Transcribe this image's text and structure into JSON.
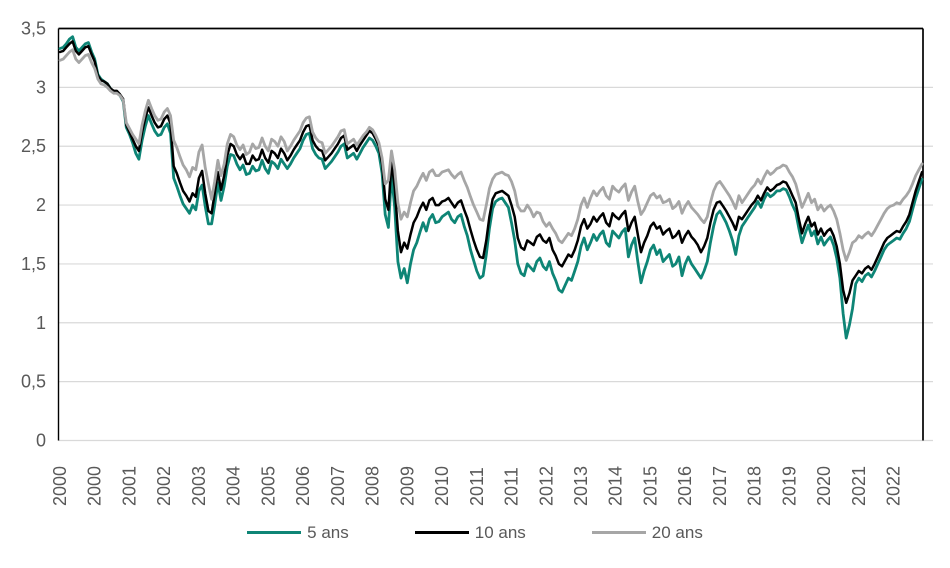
{
  "chart_data": {
    "type": "line",
    "title": "",
    "xlabel": "",
    "ylabel": "",
    "ylim": [
      0,
      3.5
    ],
    "grid": "horizontal",
    "legend_position": "bottom",
    "x_unit": "monthly categories",
    "points_per_series": 274,
    "y_tick_values": [
      0,
      0.5,
      1,
      1.5,
      2,
      2.5,
      3,
      3.5
    ],
    "y_tick_labels": [
      "0",
      "0,5",
      "1",
      "1,5",
      "2",
      "2,5",
      "3",
      "3,5"
    ],
    "x_tick_indices": [
      0,
      11,
      22,
      33,
      44,
      55,
      66,
      77,
      88,
      99,
      110,
      121,
      132,
      143,
      154,
      165,
      176,
      187,
      198,
      209,
      220,
      231,
      242,
      253,
      264
    ],
    "x_tick_labels": [
      "2000",
      "2000",
      "2001",
      "2002",
      "2003",
      "2004",
      "2005",
      "2006",
      "2007",
      "2008",
      "2009",
      "2010",
      "2011",
      "2011",
      "2012",
      "2013",
      "2014",
      "2015",
      "2016",
      "2017",
      "2018",
      "2019",
      "2020",
      "2021",
      "2022"
    ],
    "axis_text_color": "#595959",
    "gridline_color": "#d9d9d9",
    "border_color": "#000000",
    "series": [
      {
        "name": "5 ans",
        "color": "#0e8576",
        "values": [
          3.33,
          3.34,
          3.37,
          3.41,
          3.43,
          3.34,
          3.31,
          3.34,
          3.37,
          3.38,
          3.3,
          3.24,
          3.11,
          3.07,
          3.05,
          3.03,
          2.99,
          2.96,
          2.96,
          2.93,
          2.88,
          2.66,
          2.6,
          2.53,
          2.44,
          2.39,
          2.55,
          2.67,
          2.76,
          2.69,
          2.63,
          2.59,
          2.6,
          2.66,
          2.69,
          2.61,
          2.23,
          2.16,
          2.08,
          2.01,
          1.97,
          1.93,
          2.0,
          1.96,
          2.12,
          2.17,
          1.99,
          1.84,
          1.84,
          2.0,
          2.19,
          2.04,
          2.16,
          2.33,
          2.43,
          2.42,
          2.35,
          2.3,
          2.34,
          2.26,
          2.27,
          2.33,
          2.29,
          2.3,
          2.38,
          2.31,
          2.27,
          2.37,
          2.35,
          2.31,
          2.39,
          2.35,
          2.31,
          2.35,
          2.4,
          2.44,
          2.48,
          2.55,
          2.6,
          2.61,
          2.48,
          2.43,
          2.4,
          2.39,
          2.31,
          2.34,
          2.37,
          2.41,
          2.45,
          2.5,
          2.52,
          2.4,
          2.42,
          2.44,
          2.39,
          2.44,
          2.49,
          2.53,
          2.57,
          2.55,
          2.5,
          2.44,
          2.27,
          1.92,
          1.81,
          2.26,
          1.98,
          1.52,
          1.38,
          1.46,
          1.34,
          1.5,
          1.62,
          1.68,
          1.77,
          1.85,
          1.78,
          1.88,
          1.92,
          1.85,
          1.86,
          1.9,
          1.92,
          1.94,
          1.88,
          1.85,
          1.9,
          1.92,
          1.82,
          1.74,
          1.62,
          1.53,
          1.44,
          1.38,
          1.4,
          1.58,
          1.8,
          1.97,
          2.03,
          2.05,
          2.06,
          2.02,
          1.98,
          1.85,
          1.7,
          1.5,
          1.42,
          1.4,
          1.5,
          1.47,
          1.44,
          1.52,
          1.55,
          1.48,
          1.45,
          1.52,
          1.42,
          1.36,
          1.28,
          1.26,
          1.32,
          1.38,
          1.36,
          1.44,
          1.52,
          1.65,
          1.72,
          1.62,
          1.68,
          1.75,
          1.7,
          1.75,
          1.78,
          1.68,
          1.65,
          1.78,
          1.75,
          1.72,
          1.77,
          1.8,
          1.56,
          1.66,
          1.72,
          1.52,
          1.34,
          1.44,
          1.52,
          1.62,
          1.66,
          1.58,
          1.62,
          1.52,
          1.55,
          1.58,
          1.48,
          1.5,
          1.56,
          1.4,
          1.5,
          1.56,
          1.5,
          1.46,
          1.42,
          1.38,
          1.44,
          1.52,
          1.68,
          1.82,
          1.92,
          1.95,
          1.9,
          1.85,
          1.78,
          1.7,
          1.58,
          1.74,
          1.82,
          1.86,
          1.9,
          1.94,
          1.98,
          2.03,
          1.98,
          2.05,
          2.1,
          2.07,
          2.09,
          2.12,
          2.12,
          2.14,
          2.13,
          2.07,
          2.0,
          1.94,
          1.8,
          1.68,
          1.76,
          1.83,
          1.74,
          1.78,
          1.67,
          1.73,
          1.66,
          1.7,
          1.73,
          1.66,
          1.55,
          1.38,
          1.08,
          0.87,
          0.98,
          1.12,
          1.33,
          1.38,
          1.35,
          1.4,
          1.42,
          1.39,
          1.44,
          1.5,
          1.56,
          1.62,
          1.66,
          1.68,
          1.7,
          1.72,
          1.71,
          1.76,
          1.8,
          1.86,
          1.96,
          2.06,
          2.14,
          2.22
        ]
      },
      {
        "name": "10 ans",
        "color": "#000000",
        "values": [
          3.3,
          3.31,
          3.34,
          3.37,
          3.39,
          3.31,
          3.28,
          3.31,
          3.34,
          3.35,
          3.28,
          3.22,
          3.1,
          3.06,
          3.05,
          3.03,
          2.99,
          2.97,
          2.97,
          2.94,
          2.9,
          2.68,
          2.62,
          2.56,
          2.5,
          2.46,
          2.62,
          2.74,
          2.83,
          2.76,
          2.7,
          2.66,
          2.67,
          2.73,
          2.76,
          2.69,
          2.33,
          2.27,
          2.19,
          2.12,
          2.08,
          2.03,
          2.1,
          2.07,
          2.23,
          2.29,
          2.1,
          1.95,
          1.93,
          2.1,
          2.28,
          2.13,
          2.25,
          2.42,
          2.52,
          2.5,
          2.43,
          2.39,
          2.43,
          2.35,
          2.35,
          2.42,
          2.38,
          2.39,
          2.47,
          2.4,
          2.36,
          2.46,
          2.44,
          2.4,
          2.48,
          2.44,
          2.38,
          2.42,
          2.47,
          2.51,
          2.55,
          2.62,
          2.67,
          2.68,
          2.55,
          2.5,
          2.47,
          2.46,
          2.38,
          2.41,
          2.44,
          2.48,
          2.52,
          2.57,
          2.59,
          2.47,
          2.49,
          2.51,
          2.46,
          2.51,
          2.55,
          2.59,
          2.63,
          2.61,
          2.56,
          2.5,
          2.35,
          2.05,
          1.96,
          2.37,
          2.15,
          1.78,
          1.6,
          1.68,
          1.63,
          1.75,
          1.85,
          1.9,
          1.97,
          2.02,
          1.96,
          2.04,
          2.06,
          2.0,
          2.0,
          2.03,
          2.04,
          2.06,
          2.02,
          1.98,
          2.02,
          2.04,
          1.96,
          1.89,
          1.79,
          1.7,
          1.62,
          1.56,
          1.55,
          1.7,
          1.9,
          2.05,
          2.1,
          2.11,
          2.12,
          2.1,
          2.08,
          2.0,
          1.9,
          1.72,
          1.64,
          1.62,
          1.7,
          1.68,
          1.66,
          1.73,
          1.75,
          1.7,
          1.68,
          1.72,
          1.62,
          1.57,
          1.5,
          1.48,
          1.53,
          1.58,
          1.56,
          1.62,
          1.7,
          1.82,
          1.88,
          1.8,
          1.84,
          1.9,
          1.86,
          1.9,
          1.93,
          1.85,
          1.82,
          1.93,
          1.9,
          1.88,
          1.92,
          1.95,
          1.78,
          1.85,
          1.9,
          1.75,
          1.6,
          1.68,
          1.74,
          1.82,
          1.85,
          1.8,
          1.82,
          1.75,
          1.78,
          1.8,
          1.72,
          1.74,
          1.78,
          1.68,
          1.74,
          1.78,
          1.73,
          1.7,
          1.66,
          1.6,
          1.65,
          1.72,
          1.85,
          1.96,
          2.02,
          2.03,
          1.99,
          1.95,
          1.9,
          1.85,
          1.79,
          1.9,
          1.88,
          1.92,
          1.96,
          2.0,
          2.03,
          2.08,
          2.04,
          2.1,
          2.15,
          2.12,
          2.14,
          2.17,
          2.18,
          2.2,
          2.19,
          2.14,
          2.08,
          2.02,
          1.88,
          1.76,
          1.84,
          1.9,
          1.82,
          1.85,
          1.75,
          1.8,
          1.74,
          1.78,
          1.8,
          1.74,
          1.65,
          1.5,
          1.28,
          1.17,
          1.25,
          1.36,
          1.4,
          1.44,
          1.42,
          1.46,
          1.48,
          1.45,
          1.5,
          1.56,
          1.62,
          1.68,
          1.72,
          1.74,
          1.76,
          1.78,
          1.77,
          1.82,
          1.86,
          1.92,
          2.02,
          2.12,
          2.2,
          2.28
        ]
      },
      {
        "name": "20 ans",
        "color": "#a6a6a6",
        "values": [
          3.23,
          3.24,
          3.27,
          3.3,
          3.32,
          3.24,
          3.21,
          3.24,
          3.27,
          3.28,
          3.21,
          3.16,
          3.07,
          3.03,
          3.02,
          3.0,
          2.97,
          2.95,
          2.95,
          2.93,
          2.89,
          2.7,
          2.65,
          2.6,
          2.56,
          2.52,
          2.68,
          2.8,
          2.89,
          2.82,
          2.76,
          2.72,
          2.73,
          2.79,
          2.82,
          2.76,
          2.55,
          2.49,
          2.41,
          2.34,
          2.3,
          2.24,
          2.32,
          2.3,
          2.45,
          2.51,
          2.32,
          2.18,
          2.05,
          2.2,
          2.38,
          2.25,
          2.35,
          2.52,
          2.6,
          2.58,
          2.51,
          2.47,
          2.51,
          2.43,
          2.45,
          2.52,
          2.48,
          2.49,
          2.57,
          2.5,
          2.46,
          2.56,
          2.54,
          2.5,
          2.58,
          2.54,
          2.46,
          2.5,
          2.55,
          2.59,
          2.63,
          2.7,
          2.74,
          2.75,
          2.62,
          2.57,
          2.54,
          2.53,
          2.44,
          2.47,
          2.5,
          2.54,
          2.58,
          2.63,
          2.64,
          2.52,
          2.54,
          2.56,
          2.51,
          2.55,
          2.59,
          2.62,
          2.66,
          2.64,
          2.59,
          2.53,
          2.4,
          2.18,
          2.21,
          2.46,
          2.3,
          2.02,
          1.88,
          1.94,
          1.9,
          2.02,
          2.12,
          2.16,
          2.22,
          2.27,
          2.21,
          2.28,
          2.3,
          2.25,
          2.25,
          2.28,
          2.29,
          2.3,
          2.26,
          2.23,
          2.26,
          2.28,
          2.21,
          2.15,
          2.07,
          2.0,
          1.94,
          1.88,
          1.87,
          2.0,
          2.14,
          2.22,
          2.26,
          2.27,
          2.28,
          2.26,
          2.25,
          2.2,
          2.12,
          1.99,
          1.95,
          1.95,
          2.0,
          1.96,
          1.9,
          1.94,
          1.93,
          1.86,
          1.82,
          1.85,
          1.8,
          1.76,
          1.7,
          1.68,
          1.72,
          1.76,
          1.74,
          1.8,
          1.88,
          2.0,
          2.06,
          1.98,
          2.06,
          2.12,
          2.08,
          2.12,
          2.15,
          2.08,
          2.05,
          2.16,
          2.13,
          2.11,
          2.15,
          2.18,
          2.04,
          2.11,
          2.16,
          2.03,
          1.92,
          1.96,
          2.02,
          2.08,
          2.1,
          2.06,
          2.08,
          2.02,
          2.03,
          2.05,
          1.97,
          1.99,
          2.03,
          1.93,
          1.99,
          2.03,
          1.98,
          1.95,
          1.92,
          1.88,
          1.85,
          1.9,
          2.02,
          2.12,
          2.18,
          2.2,
          2.16,
          2.12,
          2.08,
          2.03,
          1.97,
          2.08,
          2.02,
          2.06,
          2.1,
          2.14,
          2.17,
          2.22,
          2.18,
          2.24,
          2.29,
          2.26,
          2.28,
          2.31,
          2.32,
          2.34,
          2.33,
          2.28,
          2.24,
          2.18,
          2.08,
          1.98,
          2.04,
          2.1,
          2.02,
          2.05,
          1.96,
          2.0,
          1.95,
          1.98,
          2.0,
          1.95,
          1.88,
          1.76,
          1.62,
          1.53,
          1.6,
          1.68,
          1.7,
          1.74,
          1.72,
          1.75,
          1.77,
          1.74,
          1.78,
          1.83,
          1.88,
          1.93,
          1.97,
          1.99,
          2.0,
          2.02,
          2.01,
          2.05,
          2.08,
          2.12,
          2.18,
          2.25,
          2.3,
          2.35
        ]
      }
    ]
  }
}
